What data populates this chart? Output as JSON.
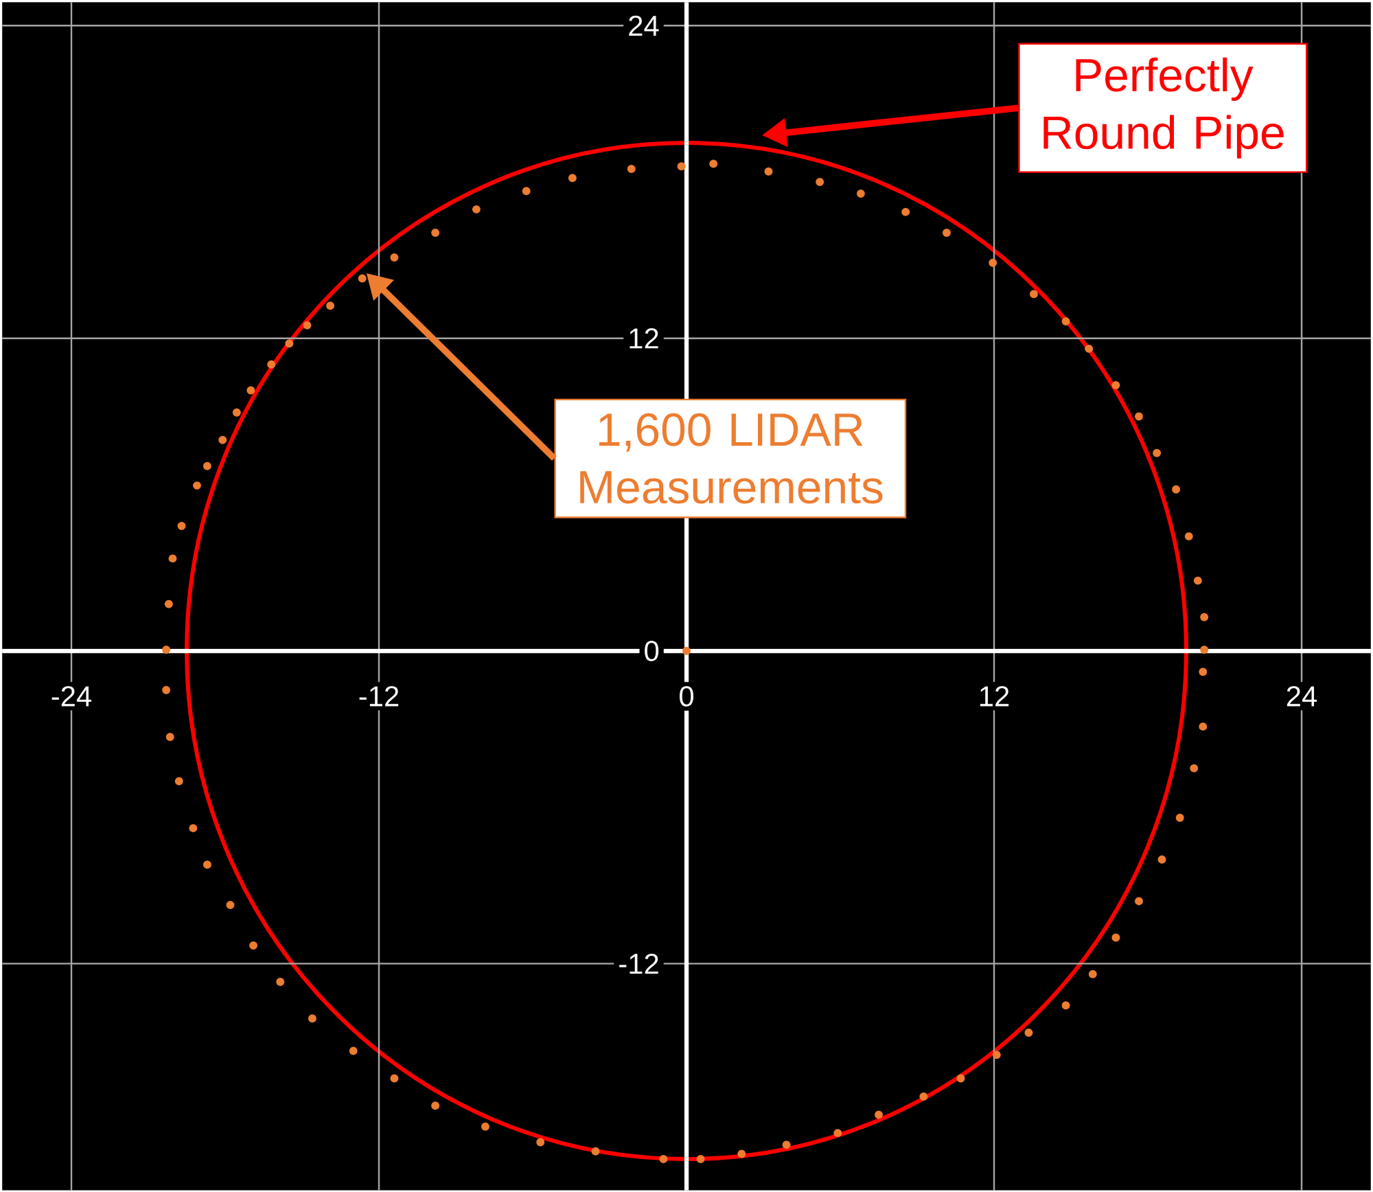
{
  "chart_data": {
    "type": "scatter",
    "xlim": [
      -26.7,
      26.7
    ],
    "ylim": [
      -20.7,
      24.9
    ],
    "xticks": [
      -24,
      -12,
      0,
      12,
      24
    ],
    "yticks": [
      -12,
      0,
      12,
      24
    ],
    "grid": true,
    "series": [
      {
        "color": "#ed7d31",
        "x": [
          -20.3,
          -20.2,
          -20.05,
          -19.7,
          -19.1,
          -18.7,
          -18.1,
          -17.55,
          -17.0,
          -16.2,
          -15.5,
          -14.8,
          -13.9,
          -12.65,
          -11.4,
          -9.8,
          -8.2,
          -6.25,
          -4.45,
          -2.15,
          -0.2,
          1.05,
          3.2,
          5.2,
          6.8,
          8.55,
          10.15,
          11.95,
          13.55,
          14.8,
          15.7,
          16.75,
          17.65,
          18.35,
          19.1,
          19.6,
          19.95,
          20.2,
          20.2,
          20.15,
          20.15,
          19.8,
          19.25,
          18.55,
          17.65,
          16.75,
          15.85,
          14.8,
          13.35,
          12.1,
          10.7,
          9.25,
          7.5,
          5.9,
          3.9,
          2.15,
          0.55,
          -0.9,
          -3.55,
          -5.7,
          -7.85,
          -9.8,
          -11.4,
          -13.0,
          -14.6,
          -15.85,
          -16.9,
          -17.8,
          -18.7,
          -19.25,
          -19.8,
          -20.15,
          -20.3,
          0
        ],
        "values": [
          0.05,
          1.8,
          3.55,
          4.8,
          6.35,
          7.1,
          8.1,
          9.15,
          10.0,
          11.0,
          11.8,
          12.5,
          13.25,
          14.3,
          15.1,
          16.05,
          16.95,
          17.65,
          18.15,
          18.5,
          18.6,
          18.7,
          18.4,
          18.0,
          17.55,
          16.85,
          16.05,
          14.9,
          13.7,
          12.65,
          11.6,
          10.2,
          9.0,
          7.6,
          6.2,
          4.4,
          2.7,
          1.3,
          0.05,
          -0.8,
          -2.9,
          -4.5,
          -6.4,
          -8.0,
          -9.6,
          -11.0,
          -12.4,
          -13.6,
          -14.65,
          -15.5,
          -16.4,
          -17.1,
          -17.8,
          -18.5,
          -18.95,
          -19.3,
          -19.5,
          -19.5,
          -19.2,
          -18.85,
          -18.25,
          -17.45,
          -16.4,
          -15.35,
          -14.1,
          -12.7,
          -11.3,
          -9.75,
          -8.2,
          -6.8,
          -5.0,
          -3.3,
          -1.5,
          0
        ]
      }
    ],
    "annotations": [
      "Perfectly Round Pipe",
      "1,600 LIDAR Measurements"
    ]
  }
}
